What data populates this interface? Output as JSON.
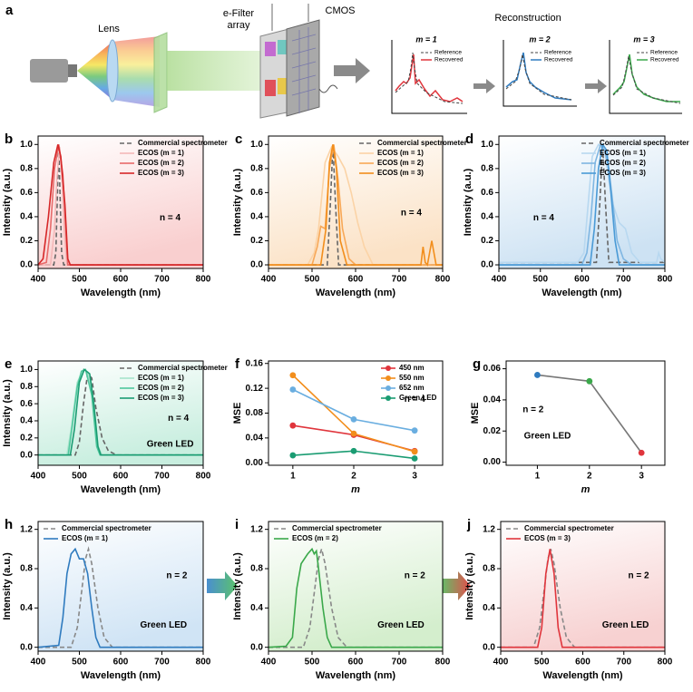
{
  "diagram": {
    "label": "a",
    "lens": "Lens",
    "filter_array": [
      "e-Filter",
      "array"
    ],
    "cmos": "CMOS",
    "reconstruction": "Reconstruction",
    "insets": [
      {
        "title": "m = 1",
        "legend": [
          "Reference",
          "Recovered"
        ]
      },
      {
        "title": "m = 2",
        "legend": [
          "Reference",
          "Recovered"
        ]
      },
      {
        "title": "m = 3",
        "legend": [
          "Reference",
          "Recovered"
        ]
      }
    ]
  },
  "chart_data": [
    {
      "type": "line",
      "label": "b",
      "xlabel": "Wavelength (nm)",
      "ylabel": "Intensity (a.u.)",
      "xlim": [
        400,
        800
      ],
      "xticks": [
        400,
        500,
        600,
        700,
        800
      ],
      "ylim": [
        -0.03,
        1.07
      ],
      "yticks": [
        {
          "value": 0,
          "label": "0.0"
        },
        0.2,
        0.4,
        0.6,
        0.8,
        {
          "value": 1,
          "label": "1.0"
        }
      ],
      "background": "#f9cfcf",
      "legend": "upper right",
      "annotations": [
        "n = 4"
      ],
      "series": [
        {
          "name": "Commercial spectrometer",
          "color": "#666666",
          "style": "dashed",
          "x": [
            400,
            438,
            443,
            447,
            450,
            453,
            457,
            462,
            800
          ],
          "values": [
            0,
            0,
            0.1,
            0.6,
            1.0,
            0.6,
            0.1,
            0,
            0
          ]
        },
        {
          "name": "ECOS (m = 1)",
          "color": "#f4b8b8",
          "x": [
            400,
            430,
            440,
            445,
            452,
            458,
            463,
            470,
            800
          ],
          "values": [
            0,
            0,
            0.3,
            0.7,
            0.98,
            0.7,
            0.3,
            0,
            0
          ]
        },
        {
          "name": "ECOS (m = 2)",
          "color": "#e86a6a",
          "x": [
            400,
            420,
            430,
            440,
            450,
            460,
            467,
            472,
            800
          ],
          "values": [
            0,
            0.02,
            0.3,
            0.8,
            1.0,
            0.75,
            0.3,
            0,
            0
          ]
        },
        {
          "name": "ECOS (m = 3)",
          "color": "#d62728",
          "x": [
            400,
            412,
            425,
            438,
            448,
            455,
            465,
            472,
            478,
            800
          ],
          "values": [
            0,
            0.05,
            0.4,
            0.85,
            1.0,
            0.9,
            0.5,
            0.05,
            0,
            0
          ]
        }
      ]
    },
    {
      "type": "line",
      "label": "c",
      "xlabel": "Wavelength (nm)",
      "ylabel": "Intensity (a.u.)",
      "xlim": [
        400,
        800
      ],
      "xticks": [
        400,
        500,
        600,
        700,
        800
      ],
      "ylim": [
        -0.03,
        1.07
      ],
      "yticks": [
        {
          "value": 0,
          "label": "0.0"
        },
        0.2,
        0.4,
        0.6,
        0.8,
        {
          "value": 1,
          "label": "1.0"
        }
      ],
      "background": "#fbe2c6",
      "legend": "upper right",
      "annotations": [
        "n = 4"
      ],
      "series": [
        {
          "name": "Commercial spectrometer",
          "color": "#666666",
          "style": "dashed",
          "x": [
            400,
            535,
            542,
            548,
            554,
            561,
            800
          ],
          "values": [
            0,
            0,
            0.5,
            1.0,
            0.5,
            0,
            0
          ]
        },
        {
          "name": "ECOS (m = 1)",
          "color": "#fbd3a6",
          "x": [
            400,
            490,
            505,
            515,
            530,
            545,
            560,
            575,
            590,
            605,
            620,
            640,
            800
          ],
          "values": [
            0,
            0,
            0.1,
            0.3,
            0.85,
            0.98,
            0.9,
            0.8,
            0.6,
            0.35,
            0.15,
            0,
            0
          ]
        },
        {
          "name": "ECOS (m = 2)",
          "color": "#f8a857",
          "x": [
            400,
            500,
            512,
            520,
            530,
            540,
            550,
            560,
            570,
            585,
            600,
            800
          ],
          "values": [
            0,
            0,
            0.15,
            0.32,
            0.3,
            0.8,
            1.0,
            0.7,
            0.3,
            0.05,
            0,
            0
          ]
        },
        {
          "name": "ECOS (m = 3)",
          "color": "#f28e1c",
          "x": [
            400,
            520,
            532,
            540,
            548,
            556,
            565,
            580,
            750,
            755,
            760,
            765,
            770,
            775,
            780,
            785,
            800
          ],
          "values": [
            0,
            0,
            0.3,
            0.85,
            1.0,
            0.8,
            0.2,
            0,
            0,
            0.15,
            0.02,
            0,
            0.1,
            0.2,
            0.1,
            0,
            0
          ]
        }
      ]
    },
    {
      "type": "line",
      "label": "d",
      "xlabel": "Wavelength (nm)",
      "ylabel": "Intensity (a.u.)",
      "xlim": [
        400,
        800
      ],
      "xticks": [
        400,
        500,
        600,
        700,
        800
      ],
      "ylim": [
        -0.03,
        1.07
      ],
      "yticks": [
        {
          "value": 0,
          "label": "0.0"
        },
        0.2,
        0.4,
        0.6,
        0.8,
        {
          "value": 1,
          "label": "1.0"
        }
      ],
      "background": "#cde2f3",
      "legend": "upper right",
      "annotations": [
        "n = 4"
      ],
      "series": [
        {
          "name": "Commercial spectrometer",
          "color": "#666666",
          "style": "dashed",
          "x": [
            400,
            635,
            643,
            650,
            657,
            665,
            800
          ],
          "values": [
            0.02,
            0.02,
            0.5,
            1.0,
            0.5,
            0.02,
            0.02
          ]
        },
        {
          "name": "ECOS (m = 1)",
          "color": "#b8d8f0",
          "x": [
            400,
            590,
            605,
            615,
            625,
            640,
            655,
            665,
            675,
            690,
            705,
            720,
            740,
            780,
            785,
            790,
            800
          ],
          "values": [
            0.02,
            0.02,
            0.1,
            0.5,
            0.9,
            1.0,
            0.95,
            0.7,
            0.5,
            0.35,
            0.3,
            0.1,
            0.02,
            0.02,
            0.1,
            0.05,
            0.02
          ]
        },
        {
          "name": "ECOS (m = 2)",
          "color": "#7fb6e2",
          "x": [
            400,
            600,
            612,
            622,
            632,
            645,
            655,
            665,
            675,
            685,
            700,
            720,
            800
          ],
          "values": [
            0,
            0,
            0.1,
            0.4,
            0.85,
            1.0,
            0.95,
            0.8,
            0.5,
            0.2,
            0.05,
            0,
            0
          ]
        },
        {
          "name": "ECOS (m = 3)",
          "color": "#4a9ad6",
          "x": [
            400,
            620,
            630,
            640,
            650,
            660,
            670,
            680,
            690,
            800
          ],
          "values": [
            0,
            0,
            0.3,
            0.8,
            1.0,
            0.95,
            0.6,
            0.2,
            0,
            0
          ]
        }
      ]
    },
    {
      "type": "line",
      "label": "e",
      "xlabel": "Wavelength (nm)",
      "ylabel": "Intensity (a.u.)",
      "xlim": [
        400,
        800
      ],
      "xticks": [
        400,
        500,
        600,
        700,
        800
      ],
      "ylim": [
        -0.12,
        1.1
      ],
      "yticks": [
        {
          "value": 0,
          "label": "0.0"
        },
        0.2,
        0.4,
        0.6,
        0.8,
        {
          "value": 1,
          "label": "1.0"
        }
      ],
      "background": "#c8eedf",
      "legend": "upper right",
      "annotations": [
        "n = 4",
        "Green LED"
      ],
      "series": [
        {
          "name": "Commercial spectrometer",
          "color": "#666666",
          "style": "dashed",
          "x": [
            400,
            490,
            500,
            510,
            520,
            530,
            540,
            555,
            570,
            590,
            800
          ],
          "values": [
            0,
            0,
            0.15,
            0.6,
            0.95,
            0.9,
            0.55,
            0.2,
            0.05,
            0,
            0
          ]
        },
        {
          "name": "ECOS (m = 1)",
          "color": "#a7e3cc",
          "x": [
            400,
            470,
            480,
            495,
            510,
            520,
            535,
            545,
            555,
            800
          ],
          "values": [
            0,
            0,
            0.3,
            0.85,
            1.0,
            0.97,
            0.6,
            0.1,
            0,
            0
          ]
        },
        {
          "name": "ECOS (m = 2)",
          "color": "#4fc79d",
          "x": [
            400,
            473,
            483,
            495,
            505,
            515,
            530,
            542,
            550,
            800
          ],
          "values": [
            0,
            0,
            0.35,
            0.8,
            0.98,
            1.0,
            0.7,
            0.1,
            0,
            0
          ]
        },
        {
          "name": "ECOS (m = 3)",
          "color": "#1a9c72",
          "x": [
            400,
            478,
            488,
            500,
            512,
            525,
            535,
            545,
            552,
            800
          ],
          "values": [
            0,
            0,
            0.3,
            0.85,
            1.0,
            0.95,
            0.6,
            0.1,
            0,
            0
          ]
        }
      ]
    },
    {
      "type": "line",
      "label": "f",
      "xlabel": "m",
      "ylabel": "MSE",
      "x": [
        1,
        2,
        3
      ],
      "xlim": [
        0.6,
        3.46
      ],
      "xticks": [
        1,
        2,
        3
      ],
      "ylim": [
        -0.004,
        0.164
      ],
      "yticks": [
        {
          "value": 0,
          "label": "0.00"
        },
        0.04,
        0.08,
        0.12,
        0.16
      ],
      "markers": true,
      "legend": "upper right",
      "annotations": [
        "n = 4"
      ],
      "series": [
        {
          "name": "450 nm",
          "color": "#e0353c",
          "values": [
            0.06,
            0.045,
            0.019
          ]
        },
        {
          "name": "550 nm",
          "color": "#f28e1c",
          "values": [
            0.141,
            0.047,
            0.018
          ]
        },
        {
          "name": "652 nm",
          "color": "#6aaee0",
          "values": [
            0.118,
            0.07,
            0.052
          ]
        },
        {
          "name": "Green LED",
          "color": "#1a9c72",
          "values": [
            0.012,
            0.019,
            0.007
          ]
        }
      ]
    },
    {
      "type": "line",
      "label": "g",
      "xlabel": "m",
      "ylabel": "MSE",
      "x": [
        1,
        2,
        3
      ],
      "xlim": [
        0.4,
        3.45
      ],
      "xticks": [
        1,
        2,
        3
      ],
      "ylim": [
        -0.002,
        0.065
      ],
      "yticks": [
        {
          "value": 0,
          "label": "0.00"
        },
        0.02,
        0.04,
        0.06
      ],
      "markers": true,
      "annotations": [
        "n = 2",
        "Green LED"
      ],
      "point_colors": [
        "#2f7bbf",
        "#3aa84a",
        "#e0353c"
      ],
      "series": [
        {
          "color": "#777777",
          "values": [
            0.056,
            0.052,
            0.006
          ]
        }
      ]
    },
    {
      "type": "line",
      "label": "h",
      "xlabel": "Wavelength (nm)",
      "ylabel": "Intensity (a.u.)",
      "xlim": [
        400,
        800
      ],
      "xticks": [
        400,
        500,
        600,
        700,
        800
      ],
      "ylim": [
        -0.04,
        1.28
      ],
      "yticks": [
        {
          "value": 0,
          "label": "0.0"
        },
        0.4,
        0.8,
        1.2
      ],
      "background": "#d0e4f5",
      "legend": "upper left",
      "annotations": [
        "n = 2",
        "Green LED"
      ],
      "series": [
        {
          "name": "Commercial spectrometer",
          "color": "#888888",
          "style": "dashed",
          "x": [
            400,
            480,
            495,
            505,
            515,
            522,
            530,
            545,
            560,
            580,
            800
          ],
          "values": [
            0,
            0,
            0.2,
            0.55,
            0.9,
            1.0,
            0.85,
            0.4,
            0.1,
            0,
            0
          ]
        },
        {
          "name": "ECOS (m = 1)",
          "color": "#2f7bbf",
          "x": [
            400,
            450,
            460,
            470,
            480,
            490,
            500,
            510,
            520,
            530,
            540,
            550,
            800
          ],
          "values": [
            0,
            0.02,
            0.3,
            0.75,
            0.95,
            1.0,
            0.9,
            0.9,
            0.75,
            0.4,
            0.1,
            0,
            0
          ]
        }
      ]
    },
    {
      "type": "line",
      "label": "i",
      "xlabel": "Wavelength (nm)",
      "ylabel": "Intensity (a.u.)",
      "xlim": [
        400,
        800
      ],
      "xticks": [
        400,
        500,
        600,
        700,
        800
      ],
      "ylim": [
        -0.04,
        1.28
      ],
      "yticks": [
        {
          "value": 0,
          "label": "0.0"
        },
        0.4,
        0.8,
        1.2
      ],
      "background": "#d4eecd",
      "legend": "upper left",
      "annotations": [
        "n = 2",
        "Green LED"
      ],
      "series": [
        {
          "name": "Commercial spectrometer",
          "color": "#888888",
          "style": "dashed",
          "x": [
            400,
            480,
            495,
            505,
            515,
            522,
            530,
            545,
            560,
            580,
            800
          ],
          "values": [
            0,
            0,
            0.2,
            0.55,
            0.9,
            1.0,
            0.85,
            0.4,
            0.1,
            0,
            0
          ]
        },
        {
          "name": "ECOS (m = 2)",
          "color": "#3aa84a",
          "x": [
            400,
            440,
            455,
            465,
            475,
            490,
            500,
            505,
            510,
            515,
            525,
            535,
            545,
            800
          ],
          "values": [
            0,
            0.01,
            0.1,
            0.6,
            0.85,
            0.95,
            1.0,
            0.95,
            0.98,
            0.8,
            0.4,
            0.1,
            0,
            0
          ]
        }
      ]
    },
    {
      "type": "line",
      "label": "j",
      "xlabel": "Wavelength (nm)",
      "ylabel": "Intensity (a.u.)",
      "xlim": [
        400,
        800
      ],
      "xticks": [
        400,
        500,
        600,
        700,
        800
      ],
      "ylim": [
        -0.04,
        1.28
      ],
      "yticks": [
        {
          "value": 0,
          "label": "0.0"
        },
        0.4,
        0.8,
        1.2
      ],
      "background": "#f7d1d1",
      "legend": "upper left",
      "annotations": [
        "n = 2",
        "Green LED"
      ],
      "series": [
        {
          "name": "Commercial spectrometer",
          "color": "#888888",
          "style": "dashed",
          "x": [
            400,
            480,
            495,
            505,
            515,
            522,
            530,
            545,
            560,
            580,
            800
          ],
          "values": [
            0,
            0,
            0.2,
            0.55,
            0.9,
            1.0,
            0.85,
            0.4,
            0.1,
            0,
            0
          ]
        },
        {
          "name": "ECOS (m = 3)",
          "color": "#e0353c",
          "x": [
            400,
            490,
            500,
            510,
            520,
            530,
            540,
            550,
            800
          ],
          "values": [
            0,
            0,
            0.2,
            0.75,
            1.0,
            0.75,
            0.2,
            0,
            0
          ]
        }
      ]
    }
  ]
}
